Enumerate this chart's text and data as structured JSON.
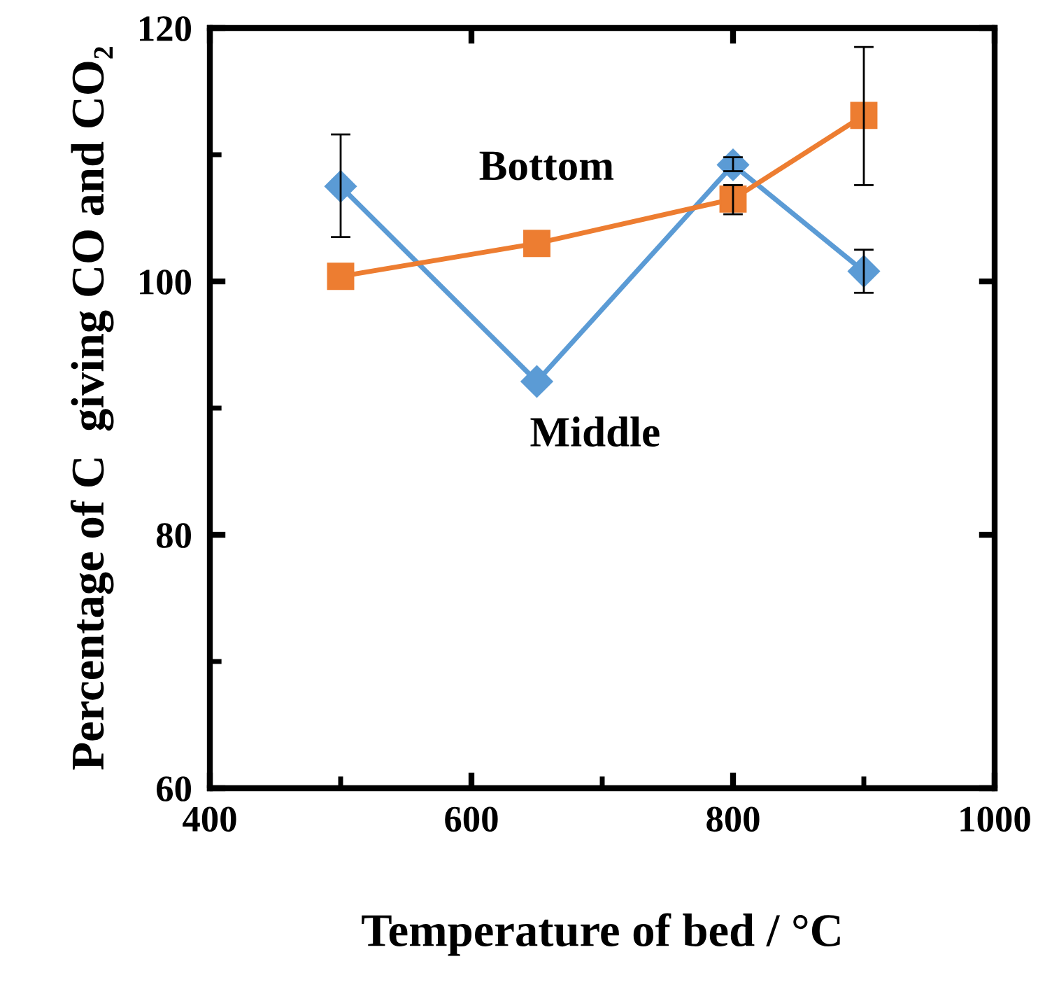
{
  "chart_data": {
    "type": "line",
    "xlabel": "Temperature of bed / °C",
    "ylabel": "Percentage of C  giving CO and CO₂",
    "x": [
      500,
      650,
      800,
      900
    ],
    "series": [
      {
        "name": "Middle",
        "color": "#5b9bd5",
        "marker": "diamond",
        "values": [
          107.5,
          92.1,
          109.2,
          100.8
        ],
        "errors": [
          [
            103.5,
            111.6
          ],
          null,
          [
            108.7,
            109.8
          ],
          [
            99.1,
            102.5
          ]
        ]
      },
      {
        "name": "Bottom",
        "color": "#ed7d31",
        "marker": "square",
        "values": [
          100.4,
          103.0,
          106.5,
          113.1
        ],
        "errors": [
          null,
          null,
          [
            105.3,
            107.6
          ],
          [
            107.6,
            118.5
          ]
        ]
      }
    ],
    "xlim": [
      400,
      1000
    ],
    "xticks": [
      400,
      {
        "value": 500,
        "label": null
      },
      600,
      {
        "value": 700,
        "label": null
      },
      800,
      {
        "value": 900,
        "label": null
      },
      1000
    ],
    "ylim": [
      60,
      120
    ],
    "yticks": [
      60,
      {
        "value": 70,
        "label": null
      },
      80,
      {
        "value": 90,
        "label": null
      },
      100,
      {
        "value": 110,
        "label": null
      },
      120
    ],
    "grid": false,
    "legend": false
  }
}
